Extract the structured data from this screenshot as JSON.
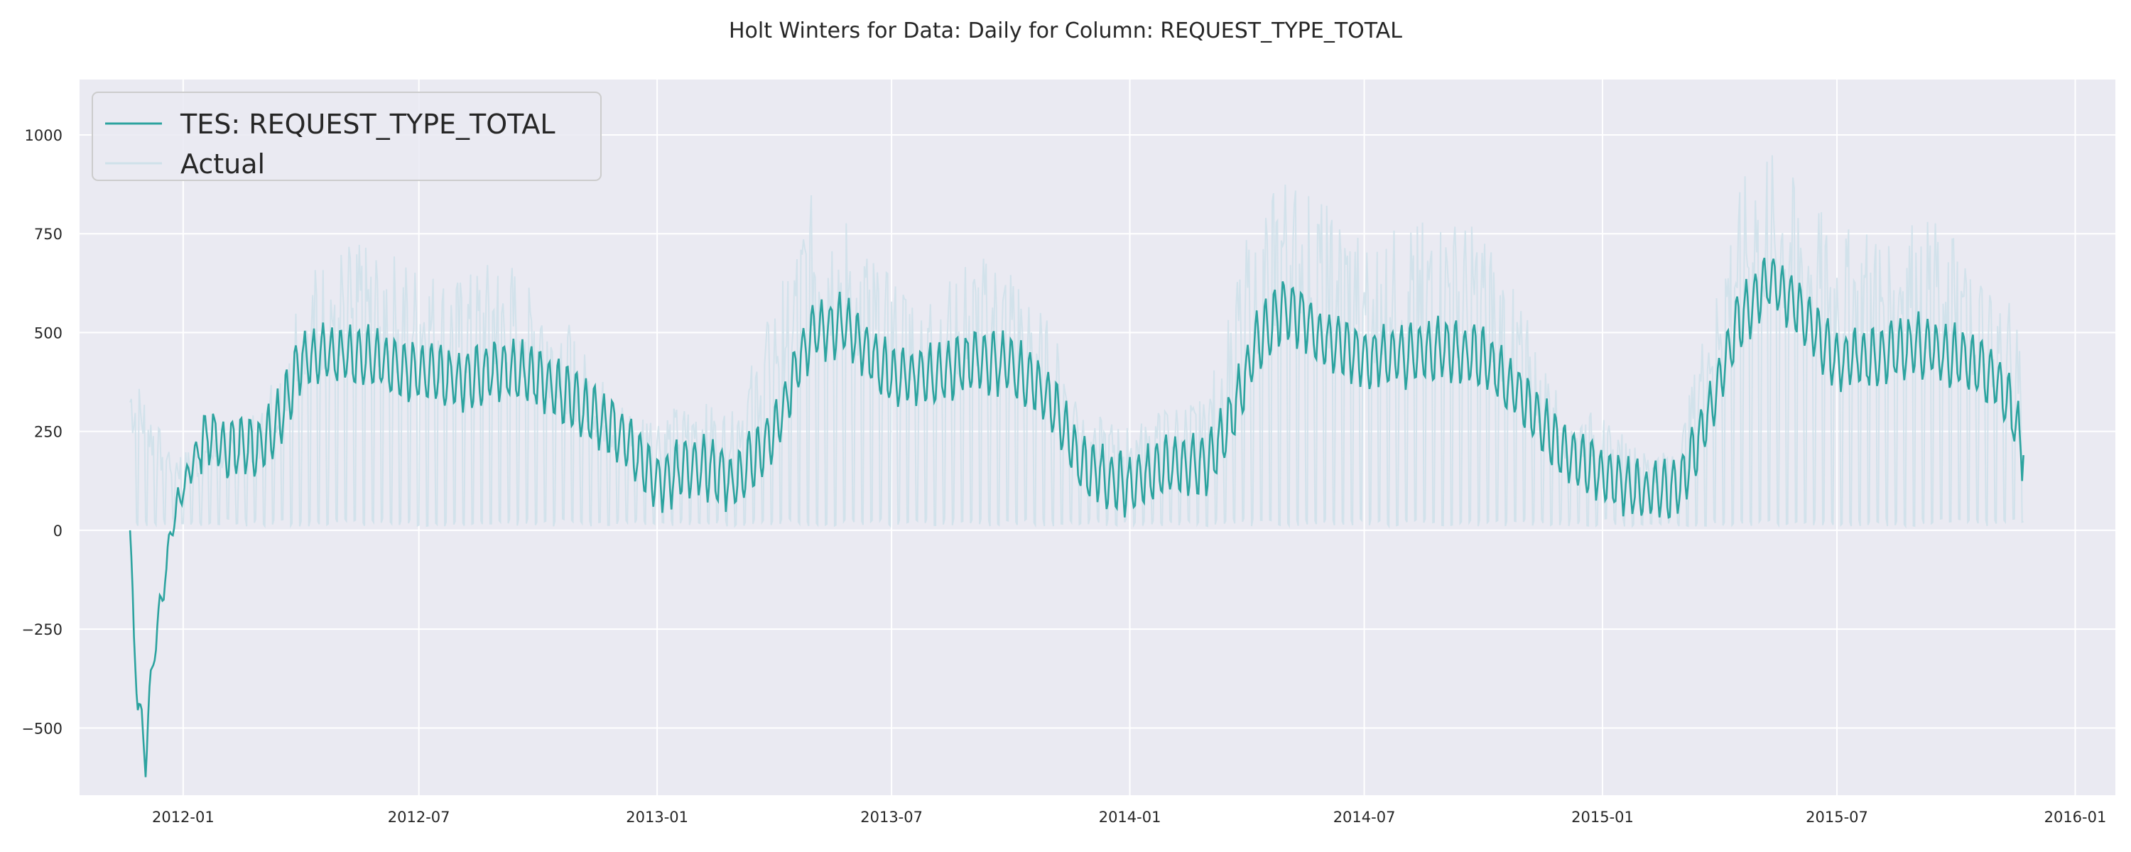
{
  "chart_data": {
    "type": "line",
    "title": "Holt Winters for Data: Daily for Column: REQUEST_TYPE_TOTAL",
    "xlabel": "",
    "ylabel": "",
    "x_range": [
      "2011-10-13",
      "2016-02-01"
    ],
    "ylim": [
      -670,
      1140
    ],
    "grid": true,
    "legend_position": "top-left",
    "x_ticks": [
      "2012-01",
      "2012-07",
      "2013-01",
      "2013-07",
      "2014-01",
      "2014-07",
      "2015-01",
      "2015-07",
      "2016-01"
    ],
    "y_ticks": [
      -500,
      -250,
      0,
      250,
      500,
      750,
      1000
    ],
    "y_tick_labels": [
      "−500",
      "−250",
      "0",
      "250",
      "500",
      "750",
      "1000"
    ],
    "colors": {
      "tes": "#2ca39f",
      "actual": "#cfe1ea",
      "background": "#eaeaf2",
      "grid": "#ffffff"
    },
    "series": [
      {
        "name": "TES: REQUEST_TYPE_TOTAL",
        "color": "#2ca39f",
        "style": "series mean level with weekly oscillation; start and end points",
        "points": [
          [
            "2011-11-21",
            0
          ],
          [
            "2011-11-24",
            -280
          ],
          [
            "2011-11-27",
            -420
          ],
          [
            "2011-12-01",
            -520
          ],
          [
            "2011-12-03",
            -585
          ],
          [
            "2011-12-06",
            -420
          ],
          [
            "2011-12-10",
            -300
          ],
          [
            "2011-12-14",
            -200
          ],
          [
            "2011-12-19",
            -90
          ],
          [
            "2011-12-24",
            20
          ],
          [
            "2011-12-31",
            100
          ],
          [
            "2012-01-10",
            180
          ],
          [
            "2012-01-20",
            240
          ],
          [
            "2012-02-01",
            210
          ],
          [
            "2012-03-01",
            210
          ],
          [
            "2012-03-15",
            280
          ],
          [
            "2012-04-01",
            430
          ],
          [
            "2012-05-01",
            450
          ],
          [
            "2012-06-01",
            430
          ],
          [
            "2012-07-01",
            400
          ],
          [
            "2012-08-01",
            380
          ],
          [
            "2012-09-01",
            410
          ],
          [
            "2012-10-01",
            390
          ],
          [
            "2012-11-01",
            320
          ],
          [
            "2012-12-01",
            250
          ],
          [
            "2013-01-01",
            120
          ],
          [
            "2013-02-01",
            170
          ],
          [
            "2013-03-01",
            120
          ],
          [
            "2013-04-01",
            240
          ],
          [
            "2013-04-20",
            420
          ],
          [
            "2013-05-01",
            500
          ],
          [
            "2013-05-25",
            520
          ],
          [
            "2013-06-15",
            440
          ],
          [
            "2013-07-01",
            390
          ],
          [
            "2013-08-01",
            390
          ],
          [
            "2013-09-01",
            430
          ],
          [
            "2013-10-01",
            420
          ],
          [
            "2013-11-01",
            330
          ],
          [
            "2013-11-25",
            160
          ],
          [
            "2014-01-01",
            110
          ],
          [
            "2014-02-01",
            170
          ],
          [
            "2014-03-01",
            160
          ],
          [
            "2014-03-20",
            280
          ],
          [
            "2014-04-10",
            480
          ],
          [
            "2014-05-01",
            570
          ],
          [
            "2014-06-01",
            480
          ],
          [
            "2014-07-01",
            440
          ],
          [
            "2014-08-01",
            440
          ],
          [
            "2014-09-01",
            460
          ],
          [
            "2014-10-01",
            440
          ],
          [
            "2014-11-01",
            330
          ],
          [
            "2014-12-01",
            200
          ],
          [
            "2015-01-01",
            140
          ],
          [
            "2015-02-01",
            90
          ],
          [
            "2015-03-01",
            110
          ],
          [
            "2015-03-25",
            300
          ],
          [
            "2015-04-15",
            520
          ],
          [
            "2015-05-10",
            640
          ],
          [
            "2015-06-01",
            560
          ],
          [
            "2015-07-01",
            430
          ],
          [
            "2015-08-01",
            440
          ],
          [
            "2015-09-01",
            470
          ],
          [
            "2015-10-01",
            440
          ],
          [
            "2015-11-01",
            380
          ],
          [
            "2015-11-15",
            290
          ],
          [
            "2015-11-22",
            190
          ]
        ],
        "oscillation_amplitude": 70
      },
      {
        "name": "Actual",
        "color": "#cfe1ea",
        "style": "daily values; drops to about 0 on low days; peaks shown",
        "points": [
          [
            "2011-11-21",
            420
          ],
          [
            "2011-12-01",
            360
          ],
          [
            "2011-12-15",
            250
          ],
          [
            "2012-01-01",
            200
          ],
          [
            "2012-02-01",
            260
          ],
          [
            "2012-03-01",
            300
          ],
          [
            "2012-04-01",
            650
          ],
          [
            "2012-05-01",
            730
          ],
          [
            "2012-06-01",
            720
          ],
          [
            "2012-07-01",
            680
          ],
          [
            "2012-08-01",
            640
          ],
          [
            "2012-09-01",
            700
          ],
          [
            "2012-10-01",
            660
          ],
          [
            "2012-11-01",
            480
          ],
          [
            "2012-12-01",
            330
          ],
          [
            "2013-01-01",
            300
          ],
          [
            "2013-02-01",
            330
          ],
          [
            "2013-03-01",
            300
          ],
          [
            "2013-04-01",
            580
          ],
          [
            "2013-05-01",
            860
          ],
          [
            "2013-06-01",
            780
          ],
          [
            "2013-07-01",
            640
          ],
          [
            "2013-08-01",
            640
          ],
          [
            "2013-09-01",
            700
          ],
          [
            "2013-10-01",
            690
          ],
          [
            "2013-11-01",
            520
          ],
          [
            "2013-12-01",
            300
          ],
          [
            "2014-01-01",
            260
          ],
          [
            "2014-02-01",
            320
          ],
          [
            "2014-03-01",
            330
          ],
          [
            "2014-04-01",
            750
          ],
          [
            "2014-05-01",
            920
          ],
          [
            "2014-06-01",
            830
          ],
          [
            "2014-07-01",
            760
          ],
          [
            "2014-08-01",
            770
          ],
          [
            "2014-09-01",
            800
          ],
          [
            "2014-10-01",
            770
          ],
          [
            "2014-11-01",
            560
          ],
          [
            "2014-12-01",
            330
          ],
          [
            "2015-01-01",
            290
          ],
          [
            "2015-02-01",
            200
          ],
          [
            "2015-03-01",
            220
          ],
          [
            "2015-04-01",
            700
          ],
          [
            "2015-05-01",
            1000
          ],
          [
            "2015-06-01",
            880
          ],
          [
            "2015-07-01",
            760
          ],
          [
            "2015-08-01",
            780
          ],
          [
            "2015-09-01",
            800
          ],
          [
            "2015-10-01",
            780
          ],
          [
            "2015-11-01",
            620
          ],
          [
            "2015-11-22",
            540
          ]
        ],
        "low_value": 10
      }
    ]
  }
}
